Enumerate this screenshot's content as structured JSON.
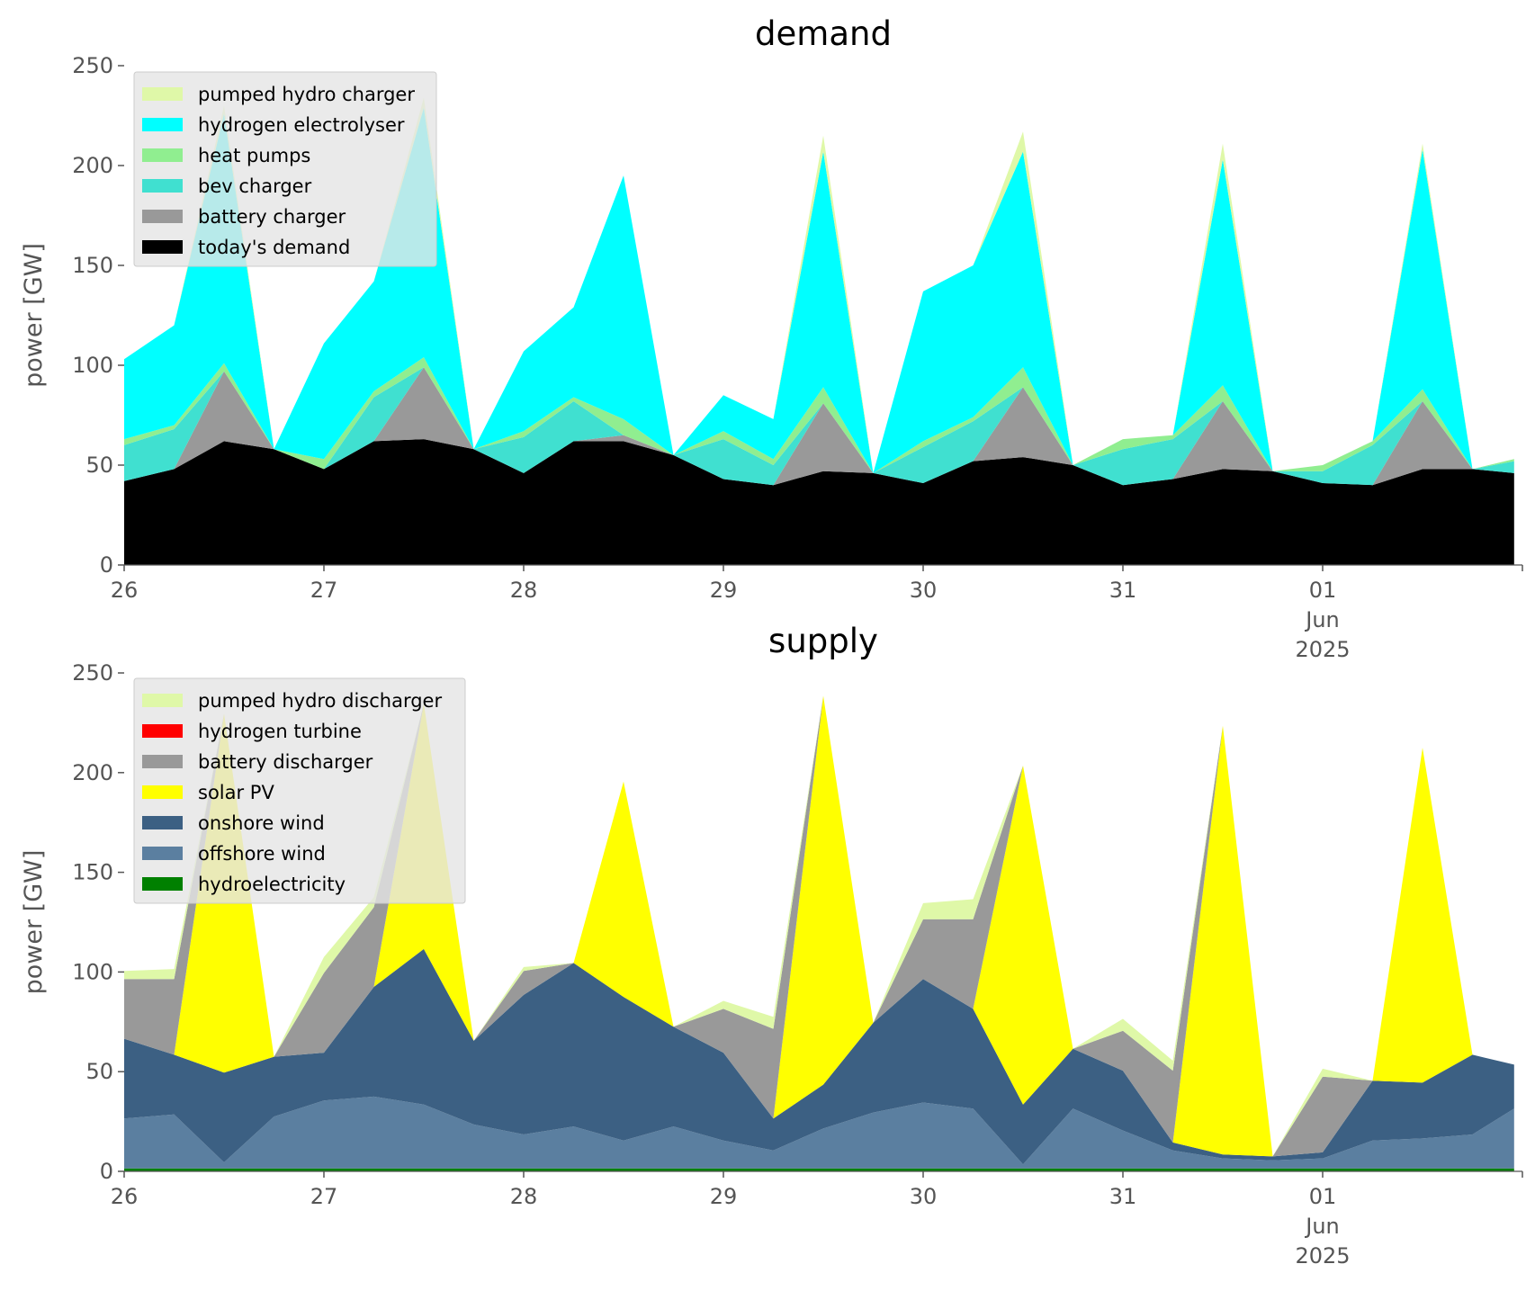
{
  "chart_data": [
    {
      "type": "area",
      "stacked": true,
      "title": "demand",
      "ylabel": "power [GW]",
      "xlabel": "",
      "ylim": [
        0,
        250
      ],
      "yticks": [
        "0",
        "50",
        "100",
        "150",
        "200",
        "250"
      ],
      "xlim": [
        "2025-05-26 00:00",
        "2025-06-02 00:00"
      ],
      "xticks": [
        {
          "date": "2025-05-26",
          "lines": [
            "26"
          ]
        },
        {
          "date": "2025-05-27",
          "lines": [
            "27"
          ]
        },
        {
          "date": "2025-05-28",
          "lines": [
            "28"
          ]
        },
        {
          "date": "2025-05-29",
          "lines": [
            "29"
          ]
        },
        {
          "date": "2025-05-30",
          "lines": [
            "30"
          ]
        },
        {
          "date": "2025-05-31",
          "lines": [
            "31"
          ]
        },
        {
          "date": "2025-06-01",
          "lines": [
            "01",
            "Jun",
            "2025"
          ]
        }
      ],
      "grid": false,
      "legend_position": "upper-left",
      "x_times": [
        "2025-05-26 00:00",
        "2025-05-26 06:00",
        "2025-05-26 12:00",
        "2025-05-26 18:00",
        "2025-05-27 00:00",
        "2025-05-27 06:00",
        "2025-05-27 12:00",
        "2025-05-27 18:00",
        "2025-05-28 00:00",
        "2025-05-28 06:00",
        "2025-05-28 12:00",
        "2025-05-28 18:00",
        "2025-05-29 00:00",
        "2025-05-29 06:00",
        "2025-05-29 12:00",
        "2025-05-29 18:00",
        "2025-05-30 00:00",
        "2025-05-30 06:00",
        "2025-05-30 12:00",
        "2025-05-30 18:00",
        "2025-05-31 00:00",
        "2025-05-31 06:00",
        "2025-05-31 12:00",
        "2025-05-31 18:00",
        "2025-06-01 00:00",
        "2025-06-01 06:00",
        "2025-06-01 12:00",
        "2025-06-01 18:00",
        "2025-06-01 23:00"
      ],
      "series": [
        {
          "name": "today's demand",
          "color": "#000000",
          "values": [
            42,
            48,
            62,
            58,
            48,
            62,
            63,
            58,
            46,
            62,
            62,
            55,
            43,
            40,
            47,
            46,
            41,
            52,
            54,
            50,
            40,
            43,
            48,
            47,
            41,
            40,
            48,
            48,
            46
          ]
        },
        {
          "name": "battery charger",
          "color": "#999999",
          "values": [
            0,
            0,
            35,
            0,
            0,
            0,
            36,
            0,
            0,
            0,
            3,
            0,
            0,
            0,
            34,
            0,
            0,
            0,
            35,
            0,
            0,
            0,
            34,
            0,
            0,
            0,
            34,
            0,
            0
          ]
        },
        {
          "name": "bev charger",
          "color": "#40e0d0",
          "values": [
            18,
            20,
            0,
            0,
            0,
            22,
            0,
            0,
            18,
            20,
            0,
            0,
            20,
            10,
            0,
            0,
            18,
            20,
            0,
            0,
            18,
            20,
            0,
            0,
            6,
            20,
            0,
            0,
            6
          ]
        },
        {
          "name": "heat pumps",
          "color": "#90ee90",
          "values": [
            3,
            2,
            4,
            0,
            5,
            3,
            5,
            0,
            3,
            2,
            8,
            0,
            4,
            3,
            8,
            0,
            3,
            2,
            10,
            0,
            5,
            2,
            8,
            0,
            3,
            2,
            6,
            0,
            1
          ]
        },
        {
          "name": "hydrogen electrolyser",
          "color": "#00ffff",
          "values": [
            40,
            50,
            125,
            0,
            58,
            55,
            125,
            0,
            40,
            45,
            122,
            0,
            18,
            20,
            118,
            0,
            75,
            76,
            108,
            0,
            0,
            0,
            113,
            0,
            0,
            0,
            120,
            0,
            0
          ]
        },
        {
          "name": "pumped hydro charger",
          "color": "#dff8a8",
          "values": [
            0,
            0,
            4,
            0,
            0,
            0,
            5,
            0,
            0,
            0,
            0,
            0,
            0,
            0,
            8,
            0,
            0,
            0,
            10,
            0,
            0,
            0,
            8,
            0,
            0,
            0,
            3,
            0,
            0
          ]
        }
      ]
    },
    {
      "type": "area",
      "stacked": true,
      "title": "supply",
      "ylabel": "power [GW]",
      "xlabel": "",
      "ylim": [
        0,
        250
      ],
      "yticks": [
        "0",
        "50",
        "100",
        "150",
        "200",
        "250"
      ],
      "xlim": [
        "2025-05-26 00:00",
        "2025-06-02 00:00"
      ],
      "xticks": [
        {
          "date": "2025-05-26",
          "lines": [
            "26"
          ]
        },
        {
          "date": "2025-05-27",
          "lines": [
            "27"
          ]
        },
        {
          "date": "2025-05-28",
          "lines": [
            "28"
          ]
        },
        {
          "date": "2025-05-29",
          "lines": [
            "29"
          ]
        },
        {
          "date": "2025-05-30",
          "lines": [
            "30"
          ]
        },
        {
          "date": "2025-05-31",
          "lines": [
            "31"
          ]
        },
        {
          "date": "2025-06-01",
          "lines": [
            "01",
            "Jun",
            "2025"
          ]
        }
      ],
      "grid": false,
      "legend_position": "upper-left",
      "x_times": [
        "2025-05-26 00:00",
        "2025-05-26 06:00",
        "2025-05-26 12:00",
        "2025-05-26 18:00",
        "2025-05-27 00:00",
        "2025-05-27 06:00",
        "2025-05-27 12:00",
        "2025-05-27 18:00",
        "2025-05-28 00:00",
        "2025-05-28 06:00",
        "2025-05-28 12:00",
        "2025-05-28 18:00",
        "2025-05-29 00:00",
        "2025-05-29 06:00",
        "2025-05-29 12:00",
        "2025-05-29 18:00",
        "2025-05-30 00:00",
        "2025-05-30 06:00",
        "2025-05-30 12:00",
        "2025-05-30 18:00",
        "2025-05-31 00:00",
        "2025-05-31 06:00",
        "2025-05-31 12:00",
        "2025-05-31 18:00",
        "2025-06-01 00:00",
        "2025-06-01 06:00",
        "2025-06-01 12:00",
        "2025-06-01 18:00",
        "2025-06-01 23:00"
      ],
      "series": [
        {
          "name": "hydroelectricity",
          "color": "#008000",
          "values": [
            1.5,
            1.5,
            1.5,
            1.5,
            1.5,
            1.5,
            1.5,
            1.5,
            1.5,
            1.5,
            1.5,
            1.5,
            1.5,
            1.5,
            1.5,
            1.5,
            1.5,
            1.5,
            1.5,
            1.5,
            1.5,
            1.5,
            1.5,
            1.5,
            1.5,
            1.5,
            1.5,
            1.5,
            1.5
          ]
        },
        {
          "name": "offshore wind",
          "color": "#5b7fa0",
          "values": [
            25,
            27,
            3,
            26,
            34,
            36,
            32,
            22,
            17,
            21,
            14,
            21,
            14,
            9,
            20,
            28,
            33,
            30,
            2,
            30,
            19,
            9,
            5,
            4,
            5,
            14,
            15,
            17,
            30
          ]
        },
        {
          "name": "onshore wind",
          "color": "#3c6083",
          "values": [
            40,
            30,
            45,
            30,
            24,
            55,
            78,
            42,
            70,
            82,
            72,
            50,
            44,
            16,
            22,
            45,
            62,
            50,
            30,
            30,
            30,
            4,
            2,
            2,
            3,
            30,
            28,
            40,
            22
          ]
        },
        {
          "name": "solar PV",
          "color": "#ffff00",
          "values": [
            0,
            0,
            180,
            0,
            0,
            0,
            123,
            0,
            0,
            0,
            108,
            0,
            0,
            0,
            195,
            0,
            0,
            0,
            170,
            0,
            0,
            0,
            215,
            0,
            0,
            0,
            168,
            0,
            0
          ]
        },
        {
          "name": "battery discharger",
          "color": "#999999",
          "values": [
            30,
            38,
            0,
            0,
            40,
            40,
            0,
            0,
            12,
            0,
            0,
            0,
            22,
            45,
            0,
            0,
            30,
            45,
            0,
            0,
            20,
            36,
            0,
            0,
            38,
            0,
            0,
            0,
            0
          ]
        },
        {
          "name": "hydrogen turbine",
          "color": "#ff0000",
          "values": [
            0,
            0,
            0,
            0,
            0,
            0,
            0,
            0,
            0,
            0,
            0,
            0,
            0,
            0,
            0,
            0,
            0,
            0,
            0,
            0,
            0,
            0,
            0,
            0,
            0,
            0,
            0,
            0,
            0
          ]
        },
        {
          "name": "pumped hydro discharger",
          "color": "#dff8a8",
          "values": [
            4,
            5,
            0,
            0,
            8,
            5,
            0,
            0,
            2,
            0,
            0,
            0,
            4,
            6,
            0,
            0,
            8,
            10,
            0,
            0,
            6,
            5,
            0,
            0,
            4,
            0,
            0,
            0,
            0
          ]
        }
      ]
    }
  ]
}
